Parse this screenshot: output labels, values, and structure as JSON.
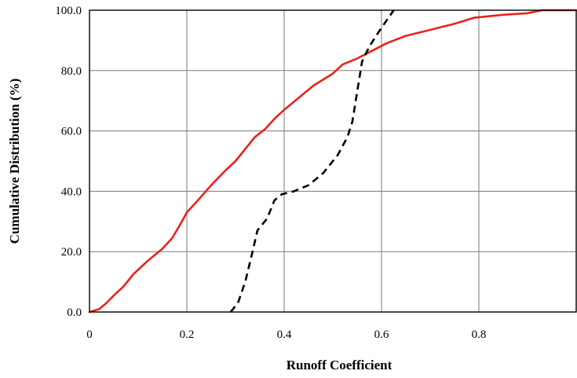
{
  "chart_data": {
    "type": "line",
    "title": "",
    "xlabel": "Runoff Coefficient",
    "ylabel": "Cumulative Distribution (%)",
    "xlim": [
      0,
      1
    ],
    "ylim": [
      0,
      100
    ],
    "x_ticks": [
      "0",
      "0.2",
      "0.4",
      "0.6",
      "0.8"
    ],
    "y_ticks": [
      "0.0",
      "20.0",
      "40.0",
      "60.0",
      "80.0",
      "100.0"
    ],
    "grid": true,
    "legend": "none",
    "series": [
      {
        "style": "solid",
        "color": "#e8231c",
        "points": [
          [
            0.0,
            0.0
          ],
          [
            0.02,
            1.0
          ],
          [
            0.035,
            3.0
          ],
          [
            0.05,
            5.5
          ],
          [
            0.07,
            8.5
          ],
          [
            0.09,
            12.5
          ],
          [
            0.12,
            17.0
          ],
          [
            0.15,
            21.0
          ],
          [
            0.17,
            24.5
          ],
          [
            0.19,
            30.0
          ],
          [
            0.2,
            33.0
          ],
          [
            0.22,
            36.5
          ],
          [
            0.25,
            42.0
          ],
          [
            0.28,
            47.0
          ],
          [
            0.3,
            50.0
          ],
          [
            0.32,
            54.0
          ],
          [
            0.34,
            58.0
          ],
          [
            0.36,
            60.5
          ],
          [
            0.38,
            64.0
          ],
          [
            0.4,
            67.0
          ],
          [
            0.43,
            71.0
          ],
          [
            0.46,
            75.0
          ],
          [
            0.5,
            79.0
          ],
          [
            0.52,
            82.0
          ],
          [
            0.55,
            84.0
          ],
          [
            0.58,
            86.5
          ],
          [
            0.61,
            89.0
          ],
          [
            0.65,
            91.5
          ],
          [
            0.7,
            93.5
          ],
          [
            0.75,
            95.5
          ],
          [
            0.79,
            97.5
          ],
          [
            0.85,
            98.5
          ],
          [
            0.9,
            99.0
          ],
          [
            0.93,
            100.0
          ],
          [
            1.0,
            100.0
          ]
        ]
      },
      {
        "style": "dashed",
        "color": "#000000",
        "points": [
          [
            0.29,
            0.0
          ],
          [
            0.305,
            3.0
          ],
          [
            0.32,
            10.0
          ],
          [
            0.335,
            20.0
          ],
          [
            0.345,
            27.0
          ],
          [
            0.365,
            31.0
          ],
          [
            0.38,
            37.0
          ],
          [
            0.395,
            39.0
          ],
          [
            0.42,
            40.0
          ],
          [
            0.45,
            42.0
          ],
          [
            0.48,
            46.0
          ],
          [
            0.51,
            52.0
          ],
          [
            0.53,
            58.0
          ],
          [
            0.54,
            63.0
          ],
          [
            0.55,
            73.0
          ],
          [
            0.56,
            83.0
          ],
          [
            0.575,
            88.0
          ],
          [
            0.595,
            93.0
          ],
          [
            0.61,
            96.5
          ],
          [
            0.625,
            100.0
          ]
        ]
      }
    ]
  }
}
